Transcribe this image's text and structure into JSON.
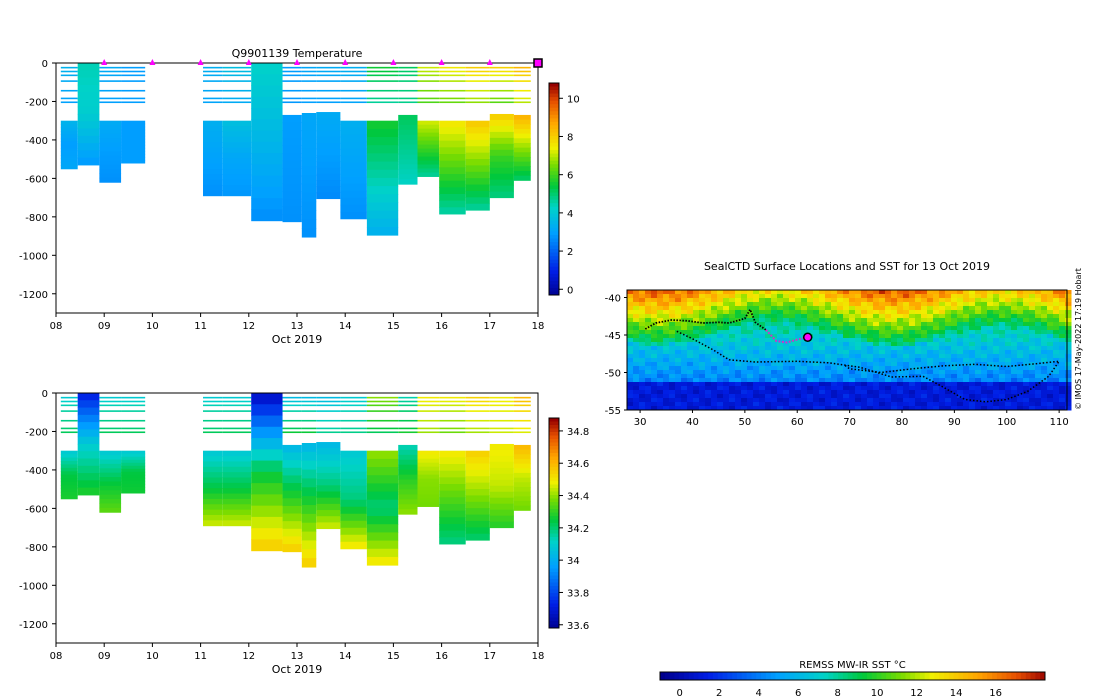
{
  "figure_credit": "© IMOS 17-May-2022 17:19 Hobart",
  "colors": {
    "marker": "#ff00ff",
    "track": "#000000",
    "seal_track_recent": "#cc33cc"
  },
  "chart_data": [
    {
      "type": "heatmap",
      "title": "Q9901139  Temperature",
      "xlabel": "Oct 2019",
      "ylabel": "",
      "x_ticks": [
        "08",
        "09",
        "10",
        "11",
        "12",
        "13",
        "14",
        "15",
        "16",
        "17",
        "18"
      ],
      "xlim": [
        8,
        18
      ],
      "ylim": [
        -1300,
        0
      ],
      "y_ticks": [
        0,
        -200,
        -400,
        -600,
        -800,
        -1000,
        -1200
      ],
      "colorbar": {
        "min": -0.3,
        "max": 10.8,
        "ticks": [
          0,
          2,
          4,
          6,
          8,
          10
        ],
        "colormap": "jet"
      },
      "profile_marker_days": [
        9,
        10,
        11,
        12,
        13,
        14,
        15,
        16,
        17
      ],
      "current_profile_day": 18,
      "profiles": [
        {
          "x0": 8.1,
          "x1": 8.45,
          "deep_top": -300,
          "deep_bottom": -550,
          "surface": 3.5,
          "mid": 3.0,
          "deep": 3.2
        },
        {
          "x0": 8.45,
          "x1": 8.9,
          "deep_top": 0,
          "deep_bottom": -530,
          "surface": 4.5,
          "mid": 4.2,
          "deep": 3.0
        },
        {
          "x0": 8.9,
          "x1": 9.35,
          "deep_top": -300,
          "deep_bottom": -620,
          "surface": 3.3,
          "mid": 3.0,
          "deep": 2.8
        },
        {
          "x0": 9.35,
          "x1": 9.85,
          "deep_top": -300,
          "deep_bottom": -520,
          "surface": 3.0,
          "mid": 3.0,
          "deep": 3.0
        },
        {
          "x0": 11.05,
          "x1": 11.45,
          "deep_top": -300,
          "deep_bottom": -690,
          "surface": 3.4,
          "mid": 3.1,
          "deep": 2.8
        },
        {
          "x0": 11.45,
          "x1": 12.05,
          "deep_top": -300,
          "deep_bottom": -690,
          "surface": 3.8,
          "mid": 3.2,
          "deep": 2.9
        },
        {
          "x0": 12.05,
          "x1": 12.7,
          "deep_top": 0,
          "deep_bottom": -820,
          "surface": 4.3,
          "mid": 3.6,
          "deep": 2.8
        },
        {
          "x0": 12.7,
          "x1": 13.1,
          "deep_top": -270,
          "deep_bottom": -825,
          "surface": 3.0,
          "mid": 2.9,
          "deep": 2.8
        },
        {
          "x0": 13.1,
          "x1": 13.4,
          "deep_top": -260,
          "deep_bottom": -905,
          "surface": 3.2,
          "mid": 3.0,
          "deep": 2.8
        },
        {
          "x0": 13.4,
          "x1": 13.9,
          "deep_top": -255,
          "deep_bottom": -705,
          "surface": 3.3,
          "mid": 3.0,
          "deep": 2.7
        },
        {
          "x0": 13.9,
          "x1": 14.45,
          "deep_top": -300,
          "deep_bottom": -810,
          "surface": 3.4,
          "mid": 3.1,
          "deep": 2.8
        },
        {
          "x0": 14.45,
          "x1": 15.1,
          "deep_top": -300,
          "deep_bottom": -895,
          "surface": 5.6,
          "mid": 4.6,
          "deep": 3.5
        },
        {
          "x0": 15.1,
          "x1": 15.5,
          "deep_top": -270,
          "deep_bottom": -630,
          "surface": 5.2,
          "mid": 4.8,
          "deep": 4.4
        },
        {
          "x0": 15.5,
          "x1": 15.95,
          "deep_top": -300,
          "deep_bottom": -590,
          "surface": 7.2,
          "mid": 6.0,
          "deep": 4.8
        },
        {
          "x0": 15.95,
          "x1": 16.5,
          "deep_top": -300,
          "deep_bottom": -785,
          "surface": 7.6,
          "mid": 6.2,
          "deep": 4.7
        },
        {
          "x0": 16.5,
          "x1": 17.0,
          "deep_top": -300,
          "deep_bottom": -765,
          "surface": 8.1,
          "mid": 6.5,
          "deep": 4.8
        },
        {
          "x0": 17.0,
          "x1": 17.5,
          "deep_top": -265,
          "deep_bottom": -700,
          "surface": 8.0,
          "mid": 6.0,
          "deep": 5.0
        },
        {
          "x0": 17.5,
          "x1": 17.85,
          "deep_top": -270,
          "deep_bottom": -610,
          "surface": 8.5,
          "mid": 6.8,
          "deep": 5.2
        }
      ]
    },
    {
      "type": "heatmap",
      "title": "",
      "xlabel": "Oct 2019",
      "ylabel": "",
      "x_ticks": [
        "08",
        "09",
        "10",
        "11",
        "12",
        "13",
        "14",
        "15",
        "16",
        "17",
        "18"
      ],
      "xlim": [
        8,
        18
      ],
      "ylim": [
        -1300,
        0
      ],
      "y_ticks": [
        0,
        -200,
        -400,
        -600,
        -800,
        -1000,
        -1200
      ],
      "colorbar": {
        "min": 33.58,
        "max": 34.88,
        "ticks": [
          33.6,
          33.8,
          34,
          34.2,
          34.4,
          34.6,
          34.8
        ],
        "colormap": "jet"
      },
      "profiles": [
        {
          "x0": 8.1,
          "x1": 8.45,
          "deep_top": -300,
          "deep_bottom": -550,
          "surface": 34.1,
          "mid": 34.25,
          "deep": 34.28
        },
        {
          "x0": 8.45,
          "x1": 8.9,
          "deep_top": 0,
          "deep_bottom": -530,
          "surface": 33.75,
          "mid": 34.1,
          "deep": 34.28
        },
        {
          "x0": 8.9,
          "x1": 9.35,
          "deep_top": -300,
          "deep_bottom": -620,
          "surface": 34.1,
          "mid": 34.25,
          "deep": 34.35
        },
        {
          "x0": 9.35,
          "x1": 9.85,
          "deep_top": -300,
          "deep_bottom": -520,
          "surface": 34.1,
          "mid": 34.25,
          "deep": 34.27
        },
        {
          "x0": 11.05,
          "x1": 11.45,
          "deep_top": -300,
          "deep_bottom": -690,
          "surface": 34.1,
          "mid": 34.25,
          "deep": 34.45
        },
        {
          "x0": 11.45,
          "x1": 12.05,
          "deep_top": -300,
          "deep_bottom": -690,
          "surface": 34.1,
          "mid": 34.25,
          "deep": 34.45
        },
        {
          "x0": 12.05,
          "x1": 12.7,
          "deep_top": 0,
          "deep_bottom": -820,
          "surface": 33.7,
          "mid": 34.25,
          "deep": 34.55
        },
        {
          "x0": 12.7,
          "x1": 13.1,
          "deep_top": -270,
          "deep_bottom": -825,
          "surface": 34.05,
          "mid": 34.3,
          "deep": 34.55
        },
        {
          "x0": 13.1,
          "x1": 13.4,
          "deep_top": -260,
          "deep_bottom": -905,
          "surface": 34.05,
          "mid": 34.3,
          "deep": 34.55
        },
        {
          "x0": 13.4,
          "x1": 13.9,
          "deep_top": -255,
          "deep_bottom": -705,
          "surface": 34.05,
          "mid": 34.2,
          "deep": 34.45
        },
        {
          "x0": 13.9,
          "x1": 14.45,
          "deep_top": -300,
          "deep_bottom": -810,
          "surface": 34.1,
          "mid": 34.2,
          "deep": 34.5
        },
        {
          "x0": 14.45,
          "x1": 15.1,
          "deep_top": -300,
          "deep_bottom": -895,
          "surface": 34.4,
          "mid": 34.2,
          "deep": 34.5
        },
        {
          "x0": 15.1,
          "x1": 15.5,
          "deep_top": -270,
          "deep_bottom": -630,
          "surface": 34.15,
          "mid": 34.3,
          "deep": 34.4
        },
        {
          "x0": 15.5,
          "x1": 15.95,
          "deep_top": -300,
          "deep_bottom": -590,
          "surface": 34.5,
          "mid": 34.4,
          "deep": 34.38
        },
        {
          "x0": 15.95,
          "x1": 16.5,
          "deep_top": -300,
          "deep_bottom": -785,
          "surface": 34.5,
          "mid": 34.35,
          "deep": 34.2
        },
        {
          "x0": 16.5,
          "x1": 17.0,
          "deep_top": -300,
          "deep_bottom": -765,
          "surface": 34.55,
          "mid": 34.4,
          "deep": 34.22
        },
        {
          "x0": 17.0,
          "x1": 17.5,
          "deep_top": -265,
          "deep_bottom": -700,
          "surface": 34.5,
          "mid": 34.45,
          "deep": 34.3
        },
        {
          "x0": 17.5,
          "x1": 17.85,
          "deep_top": -270,
          "deep_bottom": -610,
          "surface": 34.6,
          "mid": 34.45,
          "deep": 34.38
        }
      ]
    },
    {
      "type": "heatmap",
      "title": "SealCTD Surface Locations and SST for 13 Oct 2019",
      "xlabel": "",
      "ylabel": "",
      "xlim": [
        27.5,
        111.5
      ],
      "ylim": [
        -55,
        -39
      ],
      "x_ticks": [
        30,
        40,
        50,
        60,
        70,
        80,
        90,
        100,
        110
      ],
      "y_ticks": [
        -40,
        -45,
        -50,
        -55
      ],
      "colorbar": {
        "label": "REMSS MW-IR SST °C",
        "min": -1,
        "max": 18.5,
        "ticks": [
          0,
          2,
          4,
          6,
          8,
          10,
          12,
          14,
          16
        ],
        "colormap": "jet"
      },
      "current_location": {
        "lon": 62,
        "lat": -45.3
      },
      "track": [
        [
          31,
          -44.2
        ],
        [
          33,
          -43.4
        ],
        [
          36,
          -43
        ],
        [
          39,
          -43.1
        ],
        [
          42,
          -43.4
        ],
        [
          45,
          -43.3
        ],
        [
          47,
          -43.4
        ],
        [
          50,
          -42.8
        ],
        [
          51,
          -41.6
        ],
        [
          52,
          -43.3
        ],
        [
          54,
          -44.3
        ],
        [
          56,
          -45.8
        ],
        [
          58,
          -46
        ],
        [
          60,
          -45.6
        ],
        [
          62,
          -45.3
        ]
      ],
      "loop_track": [
        [
          37,
          -44.5
        ],
        [
          40,
          -45.5
        ],
        [
          44,
          -47
        ],
        [
          47,
          -48.3
        ],
        [
          52,
          -48.6
        ],
        [
          60,
          -48.5
        ],
        [
          66,
          -48.7
        ],
        [
          72,
          -49.3
        ],
        [
          78,
          -50.6
        ],
        [
          84,
          -50.5
        ],
        [
          88,
          -52
        ],
        [
          92,
          -53.6
        ],
        [
          96,
          -53.9
        ],
        [
          100,
          -53.6
        ],
        [
          104,
          -52.5
        ],
        [
          108,
          -50.5
        ],
        [
          110,
          -48.5
        ],
        [
          106,
          -48.8
        ],
        [
          100,
          -49.2
        ],
        [
          94,
          -48.9
        ],
        [
          88,
          -49.1
        ],
        [
          82,
          -49.5
        ],
        [
          76,
          -50
        ],
        [
          70,
          -49.5
        ],
        [
          69,
          -49
        ]
      ]
    }
  ]
}
